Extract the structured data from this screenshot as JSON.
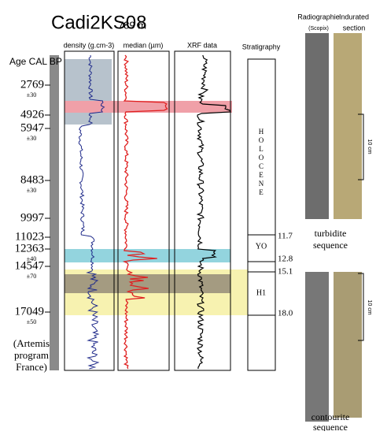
{
  "header": {
    "title": "Cadi2KS08",
    "depth": "789 m"
  },
  "age_axis": {
    "label": "Age CAL BP",
    "ages": [
      {
        "age": "2769",
        "error": "±30"
      },
      {
        "age": "4926"
      },
      {
        "age": "5947",
        "error": "±30"
      },
      {
        "age": "8483",
        "error": "±30"
      },
      {
        "age": "9997"
      },
      {
        "age": "11023"
      },
      {
        "age": "12363",
        "error": "±40"
      },
      {
        "age": "14547",
        "error": "±70"
      },
      {
        "age": "17049",
        "error": "±50"
      }
    ],
    "source": [
      "(Artemis",
      "program",
      "France)"
    ]
  },
  "columns": {
    "density": "density (g.cm-3)",
    "median": "median (µm)",
    "xrf": "XRF data",
    "stratigraphy": "Stratigraphy",
    "radiographie": "Radiographie",
    "scopix": "(Scopix)",
    "indurated": [
      "Indurated",
      "section"
    ]
  },
  "stratigraphy": {
    "holocene": [
      "H",
      "O",
      "L",
      "O",
      "C",
      "E",
      "N",
      "E"
    ],
    "yo": "YO",
    "h1": "H1",
    "boundaries": [
      "11.7",
      "12.8",
      "15.1",
      "18.0"
    ]
  },
  "sequences": {
    "turbidite": [
      "turbidite",
      "sequence"
    ],
    "contourite": [
      "contourite",
      "sequence"
    ],
    "scale": "10 cm"
  }
}
